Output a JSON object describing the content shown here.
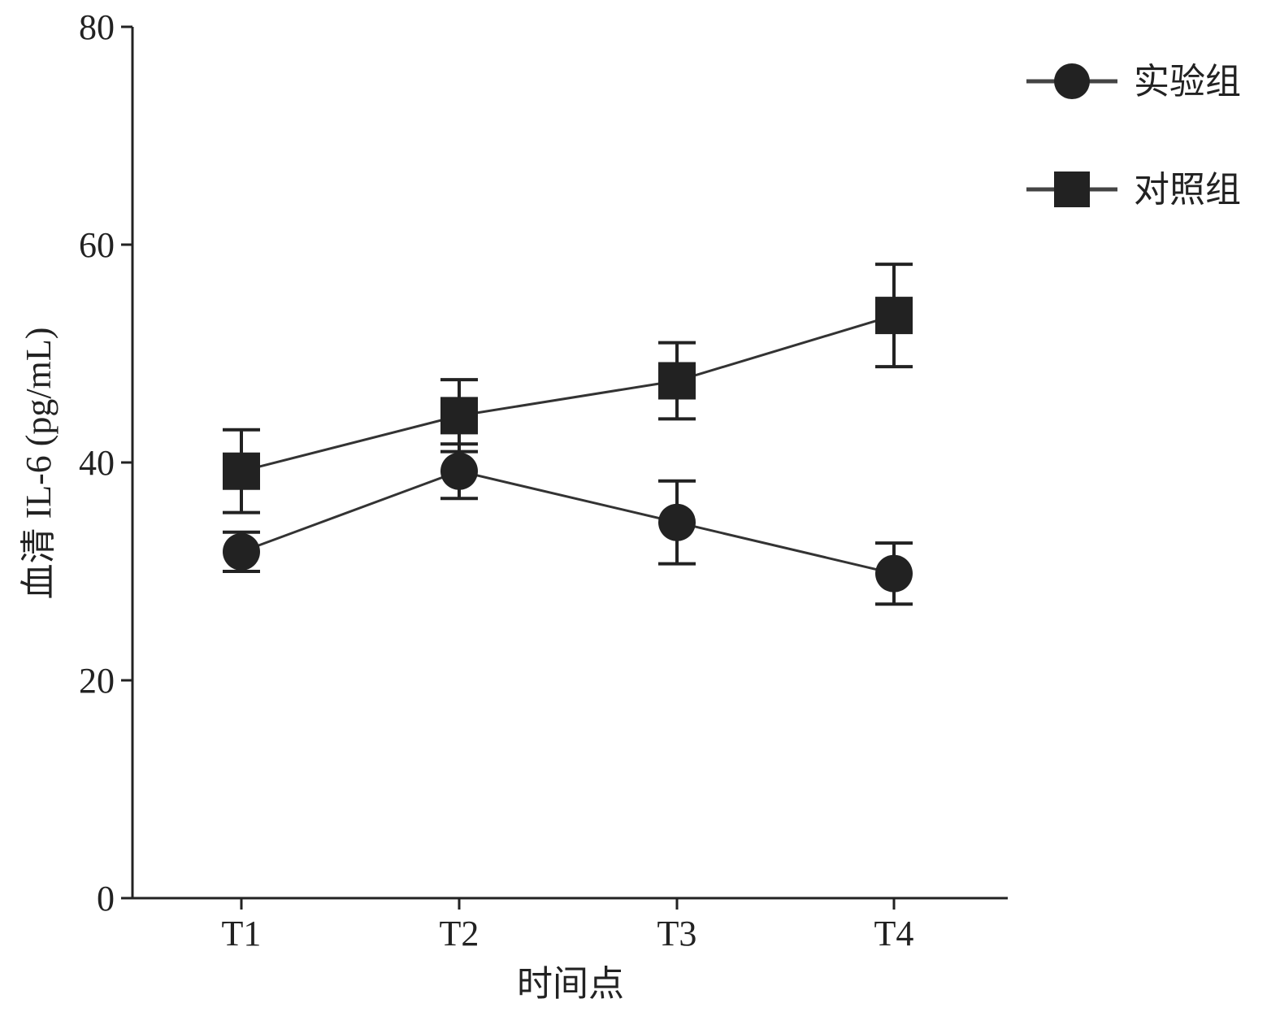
{
  "chart_data": {
    "type": "line",
    "xlabel": "时间点",
    "ylabel": "血清 IL-6 (pg/mL)",
    "categories": [
      "T1",
      "T2",
      "T3",
      "T4"
    ],
    "ylim": [
      0,
      80
    ],
    "yticks": [
      0,
      20,
      40,
      60,
      80
    ],
    "grid": false,
    "legend_position": "top-right",
    "series": [
      {
        "name": "实验组",
        "marker": "circle",
        "values": [
          31.8,
          39.2,
          34.5,
          29.8
        ],
        "error": [
          1.8,
          2.5,
          3.8,
          2.8
        ]
      },
      {
        "name": "对照组",
        "marker": "square",
        "values": [
          39.2,
          44.3,
          47.5,
          53.5
        ],
        "error": [
          3.8,
          3.3,
          3.5,
          4.7
        ]
      }
    ],
    "colors": {
      "line": "#333333",
      "marker": "#222222",
      "axis": "#222222"
    }
  }
}
